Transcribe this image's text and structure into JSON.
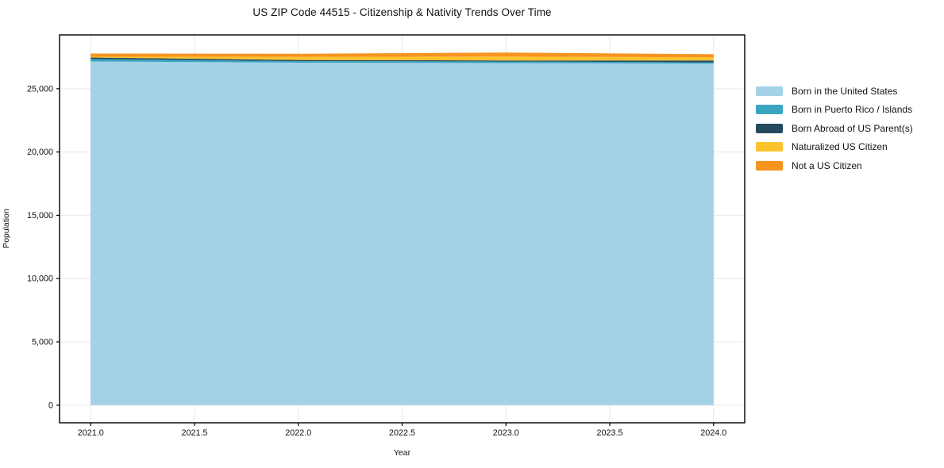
{
  "chart_data": {
    "type": "area",
    "stacked": true,
    "title": "US ZIP Code 44515 - Citizenship & Nativity Trends Over Time",
    "xlabel": "Year",
    "ylabel": "Population",
    "x": [
      2021,
      2022,
      2023,
      2024
    ],
    "series": [
      {
        "name": "Born in the United States",
        "color": "#a3d1e8",
        "values": [
          27155,
          27060,
          27030,
          26980
        ]
      },
      {
        "name": "Born in Puerto Rico / Islands",
        "color": "#3aa5c1",
        "values": [
          190,
          120,
          125,
          105
        ]
      },
      {
        "name": "Born Abroad of US Parent(s)",
        "color": "#254a5d",
        "values": [
          125,
          95,
          80,
          145
        ]
      },
      {
        "name": "Naturalized US Citizen",
        "color": "#fcc32e",
        "values": [
          60,
          235,
          310,
          250
        ]
      },
      {
        "name": "Not a US Citizen",
        "color": "#f6941f",
        "values": [
          250,
          250,
          315,
          250
        ]
      }
    ],
    "xlim": [
      2020.85,
      2024.15
    ],
    "ylim": [
      -1393,
      29253
    ],
    "xticks": {
      "values": [
        2021,
        2021.5,
        2022,
        2022.5,
        2023,
        2023.5,
        2024
      ],
      "labels": [
        "2021.0",
        "2021.5",
        "2022.0",
        "2022.5",
        "2023.0",
        "2023.5",
        "2024.0"
      ]
    },
    "yticks": {
      "values": [
        0,
        5000,
        10000,
        15000,
        20000,
        25000
      ],
      "labels": [
        "0",
        "5,000",
        "10,000",
        "15,000",
        "20,000",
        "25,000"
      ]
    },
    "grid": true,
    "grid_color": "#e7e7e7",
    "frame_color": "#000000",
    "tick_label_color": "#111111",
    "legend_position": "right-outside"
  }
}
